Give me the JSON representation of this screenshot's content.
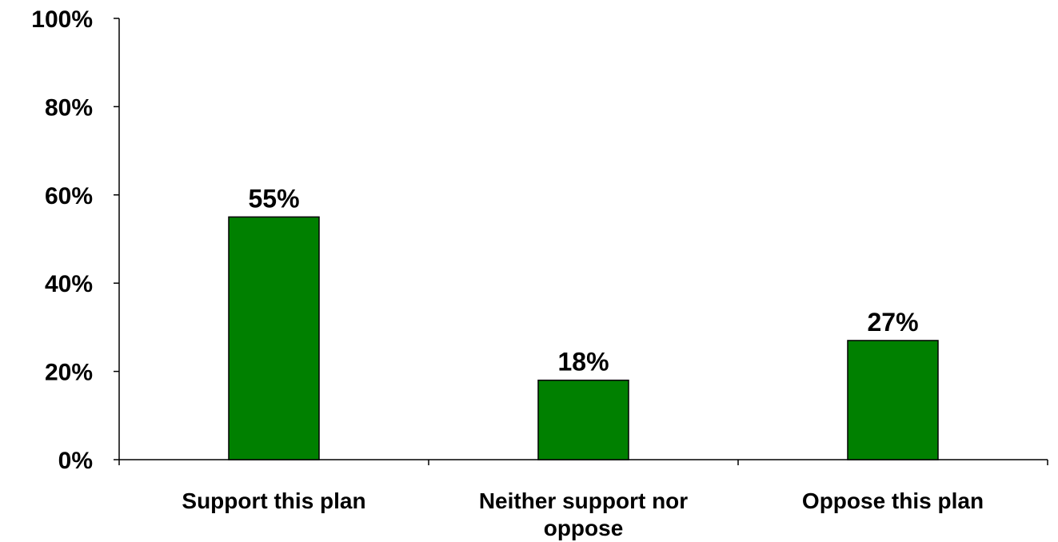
{
  "chart_data": {
    "type": "bar",
    "categories": [
      "Support this plan",
      "Neither support nor oppose",
      "Oppose this plan"
    ],
    "category_lines": [
      [
        "Support this plan"
      ],
      [
        "Neither support nor",
        "oppose"
      ],
      [
        "Oppose this plan"
      ]
    ],
    "values": [
      55,
      18,
      27
    ],
    "data_labels": [
      "55%",
      "18%",
      "27%"
    ],
    "ylim": [
      0,
      100
    ],
    "yticks": [
      0,
      20,
      40,
      60,
      80,
      100
    ],
    "ytick_labels": [
      "0%",
      "20%",
      "40%",
      "60%",
      "80%",
      "100%"
    ],
    "grid": false,
    "legend": "none",
    "colors": {
      "bar": "#008000",
      "bar_edge": "#000000",
      "axis": "#000000"
    }
  }
}
